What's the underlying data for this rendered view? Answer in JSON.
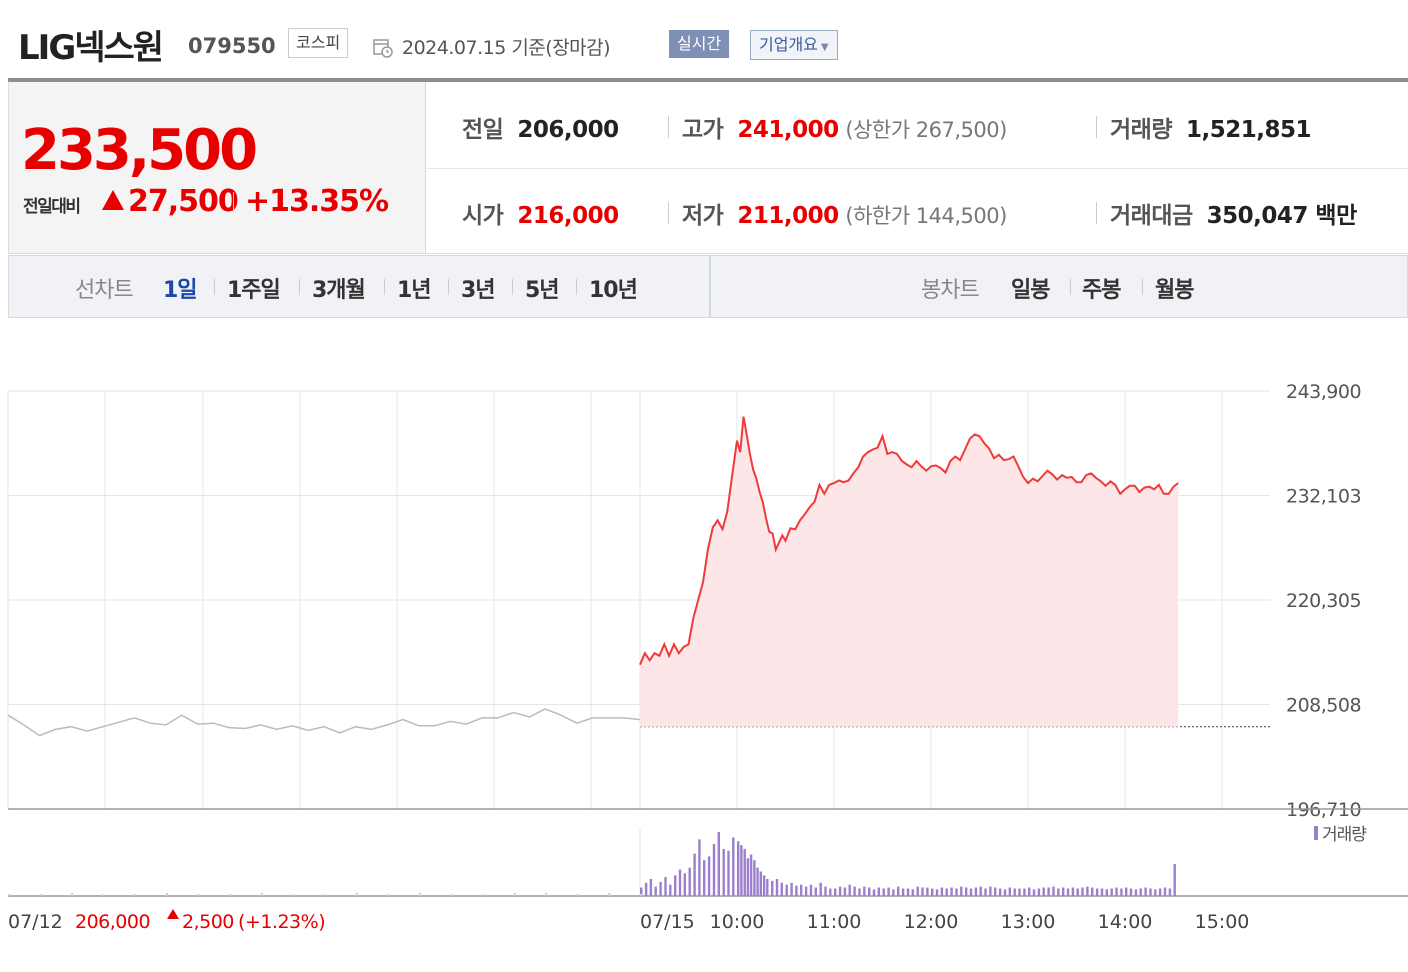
{
  "stock": {
    "name": "LIG넥스원",
    "code": "079550",
    "market": "코스피",
    "date_text": "2024.07.15  기준(장마감)",
    "realtime_label": "실시간",
    "overview_label": "기업개요"
  },
  "price": {
    "current": "233,500",
    "change_label": "전일대비",
    "change": "27,500",
    "change_pct": "+13.35%"
  },
  "stats": {
    "prev_label": "전일",
    "prev": "206,000",
    "high_label": "고가",
    "high": "241,000",
    "upper_limit": "(상한가 267,500)",
    "volume_label": "거래량",
    "volume": "1,521,851",
    "open_label": "시가",
    "open": "216,000",
    "low_label": "저가",
    "low": "211,000",
    "lower_limit": "(하한가 144,500)",
    "amount_label": "거래대금",
    "amount": "350,047 백만"
  },
  "tabs": {
    "line_label": "선차트",
    "line": [
      "1일",
      "1주일",
      "3개월",
      "1년",
      "3년",
      "5년",
      "10년"
    ],
    "candle_label": "봉차트",
    "candle": [
      "일봉",
      "주봉",
      "월봉"
    ]
  },
  "colors": {
    "up": "#e80000",
    "line": "#f03a3a",
    "area": "#fde6e7",
    "prev_line": "#bbbbbb",
    "volume": "#9b7fcc"
  },
  "chart_data": {
    "type": "line",
    "y_ticks": [
      "243,900",
      "232,103",
      "220,305",
      "208,508",
      "196,710"
    ],
    "ylim": [
      196710,
      243900
    ],
    "baseline": 206000,
    "volume_label": "거래량",
    "x_ticks": [
      "07/12",
      "07/15",
      "10:00",
      "11:00",
      "12:00",
      "13:00",
      "14:00",
      "15:00"
    ],
    "prev_day_label": "07/12",
    "prev_day_close": "206,000",
    "prev_day_change": "2,500",
    "prev_day_pct": "(+1.23%)",
    "prev_day_series": [
      [
        0,
        207300
      ],
      [
        2,
        206200
      ],
      [
        4,
        205000
      ],
      [
        6,
        205700
      ],
      [
        8,
        206000
      ],
      [
        10,
        205500
      ],
      [
        12,
        206000
      ],
      [
        14,
        206500
      ],
      [
        16,
        207000
      ],
      [
        18,
        206400
      ],
      [
        20,
        206200
      ],
      [
        22,
        207300
      ],
      [
        24,
        206300
      ],
      [
        26,
        206400
      ],
      [
        28,
        205900
      ],
      [
        30,
        205800
      ],
      [
        32,
        206200
      ],
      [
        34,
        205700
      ],
      [
        36,
        206100
      ],
      [
        38,
        205600
      ],
      [
        40,
        206000
      ],
      [
        42,
        205300
      ],
      [
        44,
        206000
      ],
      [
        46,
        205700
      ],
      [
        48,
        206200
      ],
      [
        50,
        206800
      ],
      [
        52,
        206100
      ],
      [
        54,
        206100
      ],
      [
        56,
        206600
      ],
      [
        58,
        206300
      ],
      [
        60,
        207000
      ],
      [
        62,
        207000
      ],
      [
        64,
        207600
      ],
      [
        66,
        207100
      ],
      [
        68,
        208000
      ],
      [
        70,
        207300
      ],
      [
        72,
        206400
      ],
      [
        74,
        207000
      ],
      [
        76,
        207000
      ],
      [
        78,
        207000
      ],
      [
        80,
        206800
      ]
    ],
    "today_series": [
      [
        "09:00",
        213000
      ],
      [
        "09:03",
        214300
      ],
      [
        "09:06",
        213500
      ],
      [
        "09:09",
        214300
      ],
      [
        "09:12",
        214000
      ],
      [
        "09:15",
        215300
      ],
      [
        "09:18",
        214000
      ],
      [
        "09:21",
        215300
      ],
      [
        "09:24",
        214300
      ],
      [
        "09:27",
        215000
      ],
      [
        "09:30",
        215300
      ],
      [
        "09:33",
        218300
      ],
      [
        "09:36",
        220300
      ],
      [
        "09:39",
        222300
      ],
      [
        "09:42",
        226000
      ],
      [
        "09:45",
        228500
      ],
      [
        "09:48",
        229300
      ],
      [
        "09:51",
        228300
      ],
      [
        "09:54",
        230300
      ],
      [
        "09:57",
        234300
      ],
      [
        "10:00",
        238300
      ],
      [
        "10:02",
        237000
      ],
      [
        "10:04",
        241000
      ],
      [
        "10:06",
        239000
      ],
      [
        "10:08",
        236800
      ],
      [
        "10:10",
        235000
      ],
      [
        "10:12",
        234000
      ],
      [
        "10:14",
        232500
      ],
      [
        "10:16",
        231300
      ],
      [
        "10:18",
        229500
      ],
      [
        "10:20",
        228000
      ],
      [
        "10:22",
        227800
      ],
      [
        "10:24",
        226000
      ],
      [
        "10:26",
        226800
      ],
      [
        "10:28",
        227600
      ],
      [
        "10:30",
        227000
      ],
      [
        "10:33",
        228400
      ],
      [
        "10:36",
        228300
      ],
      [
        "10:39",
        229300
      ],
      [
        "10:42",
        230000
      ],
      [
        "10:45",
        230800
      ],
      [
        "10:48",
        231400
      ],
      [
        "10:51",
        233300
      ],
      [
        "10:54",
        232300
      ],
      [
        "10:57",
        233300
      ],
      [
        "11:00",
        233500
      ],
      [
        "11:03",
        233800
      ],
      [
        "11:06",
        233600
      ],
      [
        "11:09",
        233800
      ],
      [
        "11:12",
        234600
      ],
      [
        "11:15",
        235300
      ],
      [
        "11:18",
        236500
      ],
      [
        "11:21",
        237000
      ],
      [
        "11:24",
        237300
      ],
      [
        "11:27",
        237500
      ],
      [
        "11:30",
        238800
      ],
      [
        "11:33",
        236800
      ],
      [
        "11:36",
        237000
      ],
      [
        "11:39",
        236800
      ],
      [
        "11:42",
        236000
      ],
      [
        "11:45",
        235600
      ],
      [
        "11:48",
        235300
      ],
      [
        "11:51",
        236000
      ],
      [
        "11:54",
        235400
      ],
      [
        "11:57",
        234900
      ],
      [
        "12:00",
        235400
      ],
      [
        "12:03",
        235500
      ],
      [
        "12:06",
        235200
      ],
      [
        "12:09",
        234700
      ],
      [
        "12:12",
        236000
      ],
      [
        "12:15",
        236500
      ],
      [
        "12:18",
        236100
      ],
      [
        "12:21",
        237300
      ],
      [
        "12:24",
        238500
      ],
      [
        "12:27",
        239000
      ],
      [
        "12:30",
        238800
      ],
      [
        "12:33",
        238000
      ],
      [
        "12:36",
        237400
      ],
      [
        "12:39",
        236300
      ],
      [
        "12:42",
        236700
      ],
      [
        "12:45",
        236100
      ],
      [
        "12:48",
        236200
      ],
      [
        "12:51",
        236500
      ],
      [
        "12:54",
        235400
      ],
      [
        "12:57",
        234200
      ],
      [
        "13:00",
        233500
      ],
      [
        "13:03",
        234000
      ],
      [
        "13:06",
        233700
      ],
      [
        "13:09",
        234300
      ],
      [
        "13:12",
        234900
      ],
      [
        "13:15",
        234500
      ],
      [
        "13:18",
        233900
      ],
      [
        "13:21",
        234400
      ],
      [
        "13:24",
        234100
      ],
      [
        "13:27",
        234200
      ],
      [
        "13:30",
        233600
      ],
      [
        "13:33",
        233600
      ],
      [
        "13:36",
        234400
      ],
      [
        "13:39",
        234600
      ],
      [
        "13:42",
        234100
      ],
      [
        "13:45",
        233700
      ],
      [
        "13:48",
        233200
      ],
      [
        "13:51",
        233700
      ],
      [
        "13:54",
        233300
      ],
      [
        "13:57",
        232300
      ],
      [
        "14:00",
        232800
      ],
      [
        "14:03",
        233200
      ],
      [
        "14:06",
        233200
      ],
      [
        "14:09",
        232500
      ],
      [
        "14:12",
        233000
      ],
      [
        "14:15",
        233100
      ],
      [
        "14:18",
        232800
      ],
      [
        "14:21",
        233300
      ],
      [
        "14:24",
        232300
      ],
      [
        "14:27",
        232300
      ],
      [
        "14:30",
        233100
      ],
      [
        "14:33",
        233500
      ]
    ],
    "today_volume": [
      [
        0,
        9
      ],
      [
        3,
        14
      ],
      [
        6,
        18
      ],
      [
        9,
        10
      ],
      [
        12,
        15
      ],
      [
        15,
        20
      ],
      [
        18,
        12
      ],
      [
        21,
        22
      ],
      [
        24,
        28
      ],
      [
        27,
        24
      ],
      [
        30,
        30
      ],
      [
        33,
        45
      ],
      [
        36,
        60
      ],
      [
        39,
        38
      ],
      [
        42,
        42
      ],
      [
        45,
        55
      ],
      [
        48,
        68
      ],
      [
        51,
        50
      ],
      [
        54,
        48
      ],
      [
        57,
        62
      ],
      [
        60,
        58
      ],
      [
        62,
        54
      ],
      [
        64,
        50
      ],
      [
        66,
        40
      ],
      [
        68,
        44
      ],
      [
        70,
        38
      ],
      [
        72,
        30
      ],
      [
        74,
        26
      ],
      [
        76,
        22
      ],
      [
        78,
        18
      ],
      [
        81,
        16
      ],
      [
        84,
        18
      ],
      [
        87,
        14
      ],
      [
        90,
        12
      ],
      [
        93,
        14
      ],
      [
        96,
        11
      ],
      [
        99,
        12
      ],
      [
        102,
        10
      ],
      [
        105,
        12
      ],
      [
        108,
        9
      ],
      [
        111,
        14
      ],
      [
        114,
        10
      ],
      [
        117,
        8
      ],
      [
        120,
        8
      ],
      [
        123,
        10
      ],
      [
        126,
        9
      ],
      [
        129,
        12
      ],
      [
        132,
        10
      ],
      [
        135,
        8
      ],
      [
        138,
        10
      ],
      [
        141,
        9
      ],
      [
        144,
        7
      ],
      [
        147,
        9
      ],
      [
        150,
        8
      ],
      [
        153,
        9
      ],
      [
        156,
        7
      ],
      [
        159,
        10
      ],
      [
        162,
        8
      ],
      [
        165,
        8
      ],
      [
        168,
        7
      ],
      [
        171,
        10
      ],
      [
        174,
        9
      ],
      [
        177,
        9
      ],
      [
        180,
        8
      ],
      [
        183,
        7
      ],
      [
        186,
        9
      ],
      [
        189,
        8
      ],
      [
        192,
        9
      ],
      [
        195,
        8
      ],
      [
        198,
        10
      ],
      [
        201,
        9
      ],
      [
        204,
        8
      ],
      [
        207,
        9
      ],
      [
        210,
        10
      ],
      [
        213,
        8
      ],
      [
        216,
        10
      ],
      [
        219,
        9
      ],
      [
        222,
        8
      ],
      [
        225,
        7
      ],
      [
        228,
        9
      ],
      [
        231,
        8
      ],
      [
        234,
        8
      ],
      [
        237,
        8
      ],
      [
        240,
        9
      ],
      [
        243,
        7
      ],
      [
        246,
        8
      ],
      [
        249,
        9
      ],
      [
        252,
        9
      ],
      [
        255,
        10
      ],
      [
        258,
        8
      ],
      [
        261,
        9
      ],
      [
        264,
        8
      ],
      [
        267,
        9
      ],
      [
        270,
        8
      ],
      [
        273,
        9
      ],
      [
        276,
        10
      ],
      [
        279,
        9
      ],
      [
        282,
        8
      ],
      [
        285,
        8
      ],
      [
        288,
        7
      ],
      [
        291,
        8
      ],
      [
        294,
        9
      ],
      [
        297,
        8
      ],
      [
        300,
        9
      ],
      [
        303,
        8
      ],
      [
        306,
        7
      ],
      [
        309,
        8
      ],
      [
        312,
        9
      ],
      [
        315,
        8
      ],
      [
        318,
        7
      ],
      [
        321,
        8
      ],
      [
        324,
        9
      ],
      [
        327,
        8
      ],
      [
        330,
        34
      ]
    ],
    "prev_volume": [
      [
        0,
        2
      ],
      [
        4,
        2
      ],
      [
        8,
        3
      ],
      [
        12,
        2
      ],
      [
        16,
        2
      ],
      [
        20,
        3
      ],
      [
        24,
        2
      ],
      [
        28,
        2
      ],
      [
        32,
        3
      ],
      [
        36,
        2
      ],
      [
        40,
        2
      ],
      [
        44,
        3
      ],
      [
        48,
        2
      ],
      [
        52,
        3
      ],
      [
        56,
        2
      ],
      [
        60,
        2
      ],
      [
        64,
        3
      ],
      [
        68,
        3
      ],
      [
        72,
        2
      ],
      [
        76,
        3
      ],
      [
        80,
        2
      ]
    ]
  }
}
